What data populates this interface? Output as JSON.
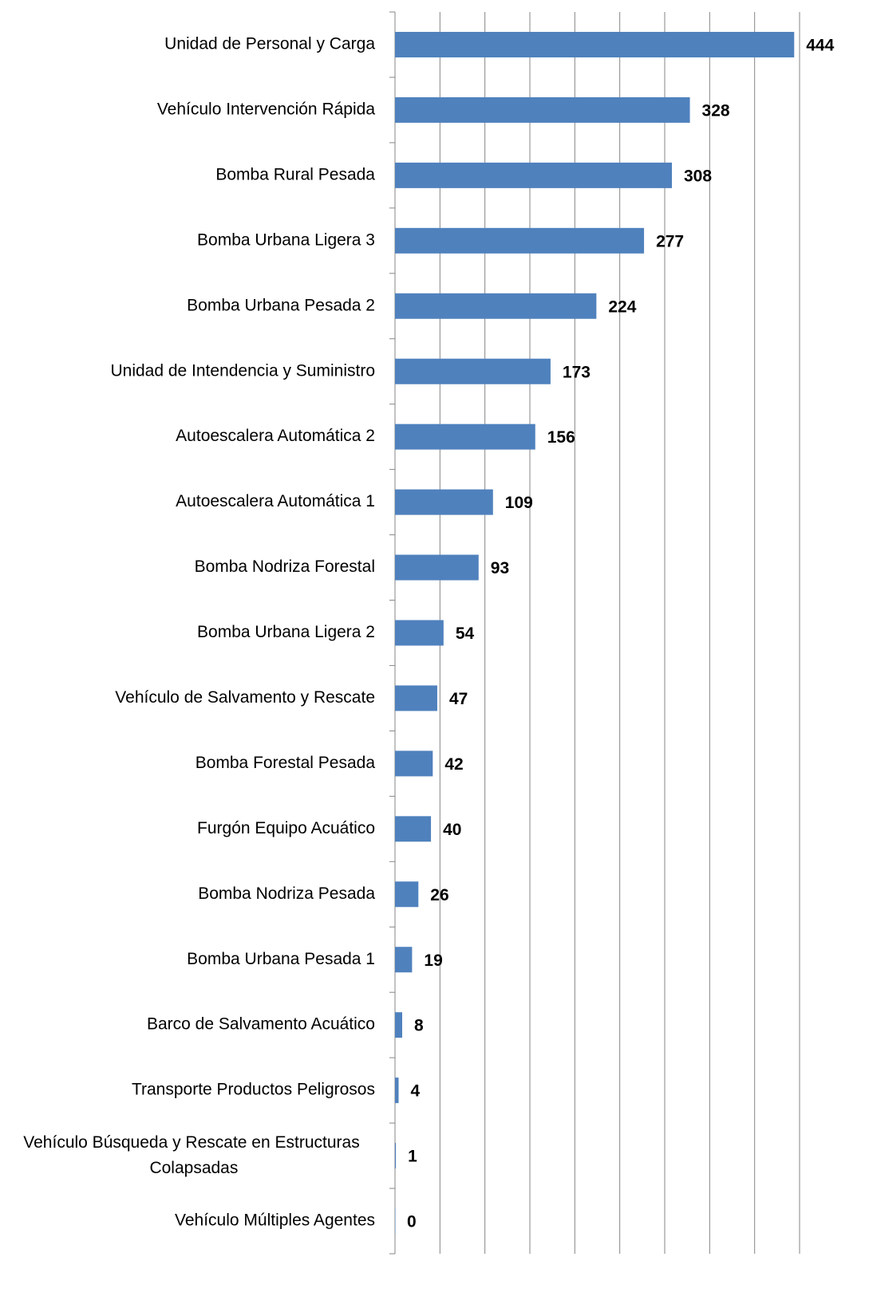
{
  "chart_data": {
    "type": "barh",
    "categories": [
      "Unidad de Personal y Carga",
      "Vehículo Intervención Rápida",
      "Bomba Rural Pesada",
      "Bomba Urbana Ligera 3",
      "Bomba Urbana Pesada 2",
      "Unidad de Intendencia y Suministro",
      "Autoescalera Automática 2",
      "Autoescalera Automática 1",
      "Bomba Nodriza Forestal",
      "Bomba Urbana Ligera 2",
      "Vehículo de Salvamento y Rescate",
      "Bomba Forestal Pesada",
      "Furgón Equipo Acuático",
      "Bomba Nodriza Pesada",
      "Bomba Urbana Pesada 1",
      "Barco de Salvamento Acuático",
      "Transporte Productos Peligrosos",
      "Vehículo Búsqueda y Rescate en Estructuras Colapsadas",
      "Vehículo Múltiples Agentes"
    ],
    "values": [
      444,
      328,
      308,
      277,
      224,
      173,
      156,
      109,
      93,
      54,
      47,
      42,
      40,
      26,
      19,
      8,
      4,
      1,
      0
    ],
    "color": "#4f81bd",
    "xlim": [
      0,
      450
    ],
    "xticks": [
      0,
      50,
      100,
      150,
      200,
      250,
      300,
      350,
      400,
      450
    ],
    "grid": true
  }
}
